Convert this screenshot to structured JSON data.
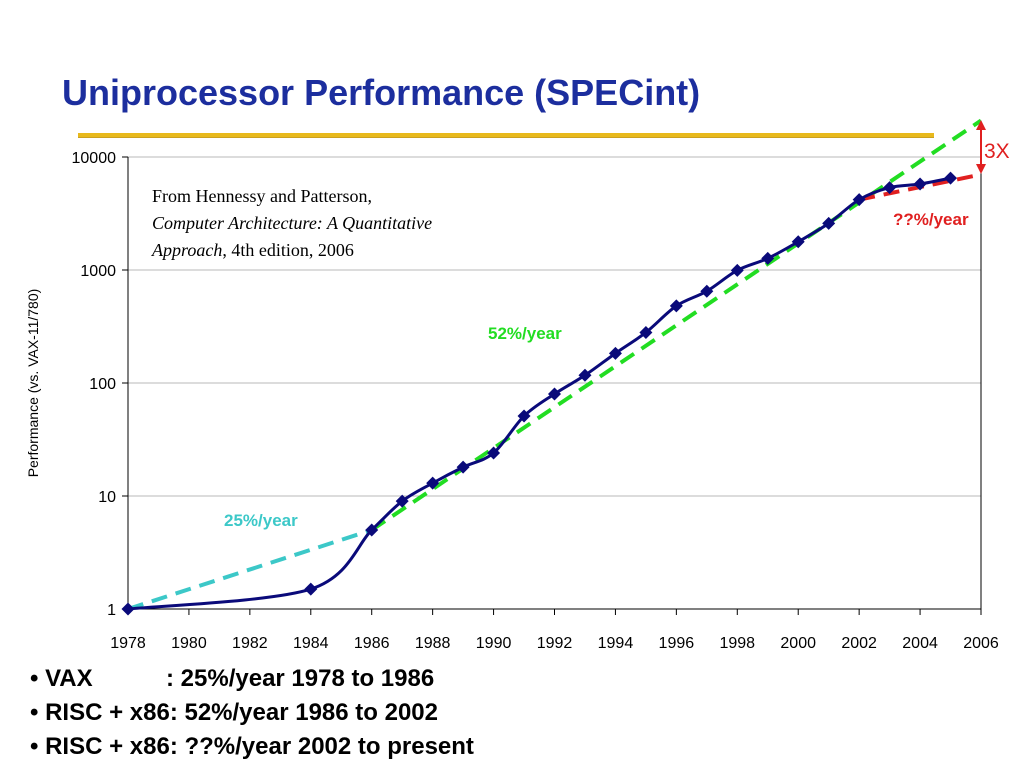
{
  "slide": {
    "title": "Uniprocessor Performance (SPECint)"
  },
  "source_note": {
    "line1": "From Hennessy and Patterson,",
    "line2": "Computer Architecture: A Quantitative",
    "line3_italic": "Approach",
    "line3_rest": ", 4th edition, 2006"
  },
  "annotations": {
    "vax_rate": "25%/year",
    "risc_rate": "52%/year",
    "recent_rate": "??%/year",
    "gap": "3X"
  },
  "bullets": [
    {
      "label": "VAX",
      "spacer": "           ",
      "text": ": 25%/year 1978 to 1986"
    },
    {
      "label": "RISC + x86",
      "spacer": "",
      "text": ": 52%/year 1986 to 2002"
    },
    {
      "label": "RISC + x86",
      "spacer": "",
      "text": ": ??%/year 2002 to present"
    }
  ],
  "colors": {
    "series": "#0a0a7a",
    "vax_trend": "#3cc8c8",
    "risc_trend": "#22dd22",
    "recent_trend": "#e02020",
    "gap_marker": "#e02020"
  },
  "chart_data": {
    "type": "line",
    "title": "",
    "xlabel": "",
    "ylabel": "Performance (vs. VAX-11/780)",
    "yscale": "log",
    "xlim": [
      1978,
      2006
    ],
    "ylim": [
      1,
      10000
    ],
    "x_ticks": [
      "1978",
      "1980",
      "1982",
      "1984",
      "1986",
      "1988",
      "1990",
      "1992",
      "1994",
      "1996",
      "1998",
      "2000",
      "2002",
      "2004",
      "2006"
    ],
    "y_ticks": [
      "1",
      "10",
      "100",
      "1000",
      "10000"
    ],
    "grid": "horizontal",
    "series": [
      {
        "x": [
          1978,
          1984,
          1986,
          1987,
          1988,
          1989,
          1990,
          1991,
          1992,
          1993,
          1994,
          1995,
          1996,
          1997,
          1998,
          1999,
          2000,
          2001,
          2002,
          2003,
          2004,
          2005
        ],
        "y": [
          1,
          1.5,
          5,
          9,
          13,
          18,
          24,
          51,
          80,
          117,
          183,
          280,
          481,
          649,
          993,
          1267,
          1779,
          2584,
          4195,
          5364,
          5764,
          6505
        ]
      }
    ],
    "trend_lines": [
      {
        "label": "25%/year",
        "x": [
          1978,
          1986
        ],
        "y": [
          1,
          5
        ]
      },
      {
        "label": "52%/year",
        "x": [
          1986,
          2006
        ],
        "y": [
          5,
          21000
        ]
      },
      {
        "label": "??%/year",
        "x": [
          2002,
          2006
        ],
        "y": [
          4195,
          7000
        ]
      }
    ]
  }
}
